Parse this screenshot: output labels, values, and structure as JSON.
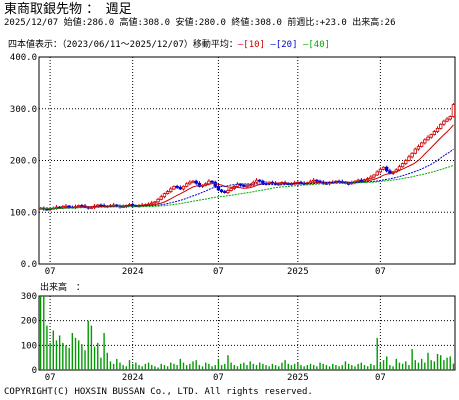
{
  "header": {
    "title": "東商取銀先物 ：　週足",
    "quote": "2025/12/07 始値:286.0 高値:308.0 安値:280.0 終値:308.0 前週比:+23.0 出来高:26"
  },
  "legend": {
    "prefix": "四本値表示：（2023/06/11〜2025/12/07）移動平均：",
    "ma": [
      {
        "label": "[10]",
        "color": "#cc0000"
      },
      {
        "label": "[20]",
        "color": "#0000cc"
      },
      {
        "label": "[40]",
        "color": "#00aa00"
      }
    ]
  },
  "volume_title": "出来高　：",
  "copyright": "COPYRIGHT(C) HOXSIN BUSSAN Co., LTD. All rights reserved.",
  "colors": {
    "up": "#cc0000",
    "down": "#0000cc",
    "volume": "#009900",
    "grid": "#000000"
  },
  "chart_data": [
    {
      "type": "candlestick",
      "ylim": [
        0,
        400
      ],
      "yticks": [
        "0.0",
        "100.0",
        "200.0",
        "300.0",
        "400.0"
      ],
      "xticks": [
        {
          "label": "07",
          "week": 3
        },
        {
          "label": "2024",
          "week": 29
        },
        {
          "label": "07",
          "week": 56
        },
        {
          "label": "2025",
          "week": 81
        },
        {
          "label": "07",
          "week": 107
        }
      ],
      "weeks_total": 131,
      "close": [
        108,
        106,
        105,
        107,
        108,
        110,
        109,
        111,
        112,
        110,
        109,
        111,
        113,
        112,
        110,
        108,
        109,
        112,
        114,
        113,
        111,
        112,
        113,
        114,
        112,
        110,
        111,
        113,
        115,
        113,
        112,
        113,
        114,
        115,
        116,
        118,
        120,
        125,
        130,
        136,
        140,
        145,
        150,
        148,
        145,
        150,
        155,
        158,
        160,
        156,
        150,
        152,
        155,
        160,
        158,
        150,
        143,
        140,
        138,
        142,
        146,
        150,
        154,
        152,
        150,
        151,
        153,
        158,
        162,
        160,
        156,
        155,
        158,
        156,
        154,
        155,
        157,
        156,
        154,
        155,
        157,
        158,
        156,
        155,
        157,
        160,
        162,
        160,
        158,
        156,
        155,
        157,
        158,
        160,
        159,
        158,
        156,
        155,
        157,
        160,
        162,
        161,
        163,
        165,
        168,
        172,
        178,
        183,
        187,
        180,
        175,
        178,
        182,
        188,
        194,
        200,
        207,
        214,
        222,
        227,
        234,
        240,
        245,
        250,
        256,
        262,
        270,
        276,
        280,
        285,
        308
      ],
      "ma": [
        {
          "label": "10",
          "values": [
            108,
            107,
            106.3,
            106.5,
            106.8,
            107.3,
            107.6,
            108,
            108.4,
            108.6,
            108.7,
            109.2,
            110,
            110.5,
            110.7,
            110.5,
            110.5,
            110.6,
            110.8,
            111.1,
            111.3,
            111.4,
            111.4,
            111.6,
            111.8,
            112,
            112.2,
            112.3,
            112.4,
            112.4,
            112.5,
            112.6,
            112.7,
            112.8,
            113.2,
            114,
            114.9,
            116.1,
            117.6,
            119.9,
            122.7,
            125.9,
            129.5,
            132.8,
            135.7,
            138.9,
            142.4,
            145.7,
            148.7,
            150.7,
            151.7,
            152.4,
            152.9,
            154.1,
            155.4,
            155.4,
            154.2,
            152.4,
            150.2,
            148.8,
            148.4,
            148.2,
            148.1,
            147.3,
            146.5,
            146.6,
            147.6,
            149.4,
            151.8,
            153.7,
            154.7,
            155.2,
            155.6,
            156,
            156.4,
            156.8,
            157.2,
            157,
            156.2,
            155.7,
            155.8,
            156.1,
            155.9,
            155.8,
            156.1,
            156.6,
            157.1,
            157.5,
            157.9,
            158,
            158,
            157.9,
            158.1,
            158.6,
            158.8,
            158.6,
            158,
            157.5,
            157.4,
            157.8,
            158.5,
            158.9,
            159.6,
            160.6,
            161.9,
            163.5,
            165.7,
            168.5,
            171.5,
            173.5,
            174.8,
            176.5,
            178.5,
            180.8,
            183.4,
            186.2,
            189.1,
            192.2,
            195.7,
            200.4,
            206.3,
            212.5,
            218.8,
            225,
            231.2,
            237.4,
            243.7,
            249.9,
            255.7,
            261.5,
            268.9
          ]
        },
        {
          "label": "20",
          "values": [
            108,
            107.5,
            106.9,
            106.8,
            106.8,
            107.1,
            107.3,
            107.6,
            108,
            108.1,
            108.2,
            108.5,
            108.9,
            109.2,
            109.3,
            109.3,
            109.3,
            109.4,
            109.7,
            109.9,
            110.1,
            110.4,
            110.8,
            111.1,
            111.3,
            111.3,
            111.4,
            111.5,
            111.6,
            111.8,
            111.9,
            112,
            112.1,
            112.1,
            112.4,
            112.7,
            113.1,
            113.7,
            114.5,
            115.6,
            116.8,
            118.2,
            119.8,
            121.4,
            122.9,
            124.9,
            127.1,
            129.3,
            131.6,
            133.8,
            136.1,
            138.5,
            141,
            144,
            146.6,
            148.3,
            149,
            149.7,
            150.3,
            151.4,
            152.6,
            153.5,
            154.4,
            154.7,
            154.5,
            154.6,
            154.8,
            155,
            155.1,
            154.6,
            153.7,
            153.5,
            153.4,
            153.4,
            153.2,
            152.9,
            153.1,
            153.5,
            154.1,
            154.4,
            154.5,
            154.6,
            154.9,
            154.9,
            154.8,
            155.1,
            155.6,
            156.2,
            156.7,
            156.9,
            157.1,
            157.4,
            157.6,
            157.9,
            158.3,
            158.5,
            158.4,
            158.1,
            157.6,
            157.4,
            157.3,
            157.8,
            158.3,
            158.8,
            159.3,
            159.8,
            160.4,
            161.4,
            162.5,
            163.4,
            164.6,
            166,
            167.4,
            168.9,
            170.6,
            172.5,
            174.6,
            176.7,
            178.9,
            181,
            183.7,
            186.6,
            189.6,
            192.8,
            196.3,
            200.2,
            204.8,
            209.2,
            213.4,
            217.1,
            221.9
          ]
        },
        {
          "label": "40",
          "values": [
            108,
            107.8,
            107.4,
            107.4,
            107.4,
            107.5,
            107.6,
            107.8,
            108,
            108.1,
            108.2,
            108.3,
            108.6,
            108.8,
            108.9,
            108.9,
            109,
            109.1,
            109.3,
            109.5,
            109.6,
            109.8,
            110,
            110.1,
            110.2,
            110.2,
            110.3,
            110.4,
            110.5,
            110.6,
            110.6,
            110.7,
            110.8,
            110.9,
            111,
            111.2,
            111.4,
            111.8,
            112.2,
            112.7,
            113.4,
            114.2,
            115.1,
            116,
            116.8,
            117.8,
            118.9,
            120.1,
            121.3,
            122.4,
            123.4,
            124.5,
            125.5,
            126.8,
            128,
            128.9,
            129.7,
            130.4,
            131,
            131.9,
            132.8,
            133.8,
            134.8,
            135.7,
            136.6,
            137.6,
            138.6,
            139.8,
            141.1,
            142,
            142.9,
            144,
            145.2,
            146.6,
            147.6,
            148.3,
            148.9,
            149.4,
            149.8,
            150.5,
            151.2,
            151.9,
            152.4,
            152.7,
            152.9,
            153.3,
            153.8,
            154.4,
            154.9,
            155.1,
            155.2,
            155.4,
            155.7,
            155.8,
            155.8,
            155.9,
            156,
            156.2,
            156.5,
            156.7,
            156.9,
            157.2,
            157.5,
            157.6,
            157.8,
            158.2,
            158.8,
            159.6,
            160.4,
            161,
            161.6,
            162.3,
            163.1,
            164.1,
            165.2,
            166.3,
            167.4,
            168.7,
            170.1,
            171.5,
            172.8,
            174.2,
            175.7,
            177.2,
            178.8,
            180.6,
            182.5,
            184.4,
            186.4,
            188.3,
            190.6
          ]
        }
      ]
    },
    {
      "type": "bar",
      "title": "出来高",
      "ylim": [
        0,
        300
      ],
      "yticks": [
        "0",
        "100",
        "200",
        "300"
      ],
      "values": [
        320,
        300,
        180,
        110,
        160,
        120,
        140,
        110,
        100,
        90,
        150,
        130,
        120,
        105,
        80,
        200,
        180,
        95,
        110,
        50,
        150,
        70,
        35,
        25,
        45,
        30,
        20,
        15,
        40,
        25,
        30,
        20,
        15,
        25,
        30,
        20,
        15,
        10,
        25,
        20,
        15,
        30,
        25,
        20,
        45,
        30,
        20,
        25,
        35,
        40,
        20,
        15,
        30,
        25,
        15,
        20,
        45,
        20,
        25,
        60,
        30,
        20,
        15,
        25,
        30,
        20,
        35,
        25,
        20,
        30,
        25,
        20,
        15,
        25,
        20,
        15,
        30,
        40,
        25,
        20,
        25,
        30,
        20,
        15,
        20,
        25,
        20,
        15,
        30,
        25,
        20,
        15,
        25,
        20,
        15,
        20,
        35,
        25,
        20,
        15,
        25,
        30,
        20,
        15,
        25,
        20,
        130,
        30,
        40,
        55,
        20,
        15,
        45,
        30,
        25,
        35,
        20,
        85,
        40,
        30,
        45,
        30,
        70,
        40,
        35,
        65,
        60,
        40,
        50,
        55,
        26
      ]
    }
  ]
}
